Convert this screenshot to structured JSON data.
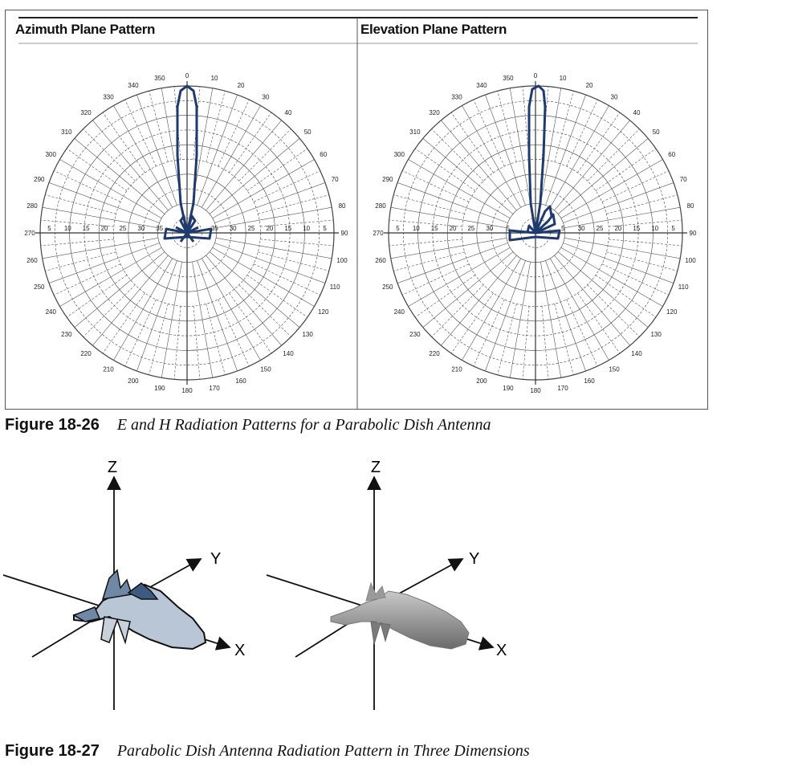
{
  "figure1": {
    "left_title": "Azimuth Plane Pattern",
    "right_title": "Elevation Plane Pattern",
    "angle_labels": [
      "0",
      "10",
      "20",
      "30",
      "40",
      "50",
      "60",
      "70",
      "80",
      "90",
      "100",
      "110",
      "120",
      "130",
      "140",
      "150",
      "160",
      "170",
      "180",
      "190",
      "200",
      "210",
      "220",
      "230",
      "240",
      "250",
      "260",
      "270",
      "280",
      "290",
      "300",
      "310",
      "320",
      "330",
      "340",
      "350"
    ],
    "left_db_labels": [
      "5",
      "10",
      "15",
      "20",
      "25",
      "30",
      "35"
    ],
    "right_db_labels": [
      "5",
      "10",
      "15",
      "20",
      "25",
      "30",
      "5"
    ],
    "caption_number": "Figure 18-26",
    "caption_text": "E and H Radiation Patterns for a Parabolic Dish Antenna",
    "trace_color": "#1e3a6e"
  },
  "figure2": {
    "axis_z": "Z",
    "axis_y": "Y",
    "axis_x": "X",
    "caption_number": "Figure 18-27",
    "caption_text": "Parabolic Dish Antenna Radiation Pattern in Three Dimensions",
    "colors": {
      "lobe_light": "#b9c6d6",
      "lobe_dark": "#6e88a6",
      "lobe_gray": "#8a8a8a"
    }
  }
}
